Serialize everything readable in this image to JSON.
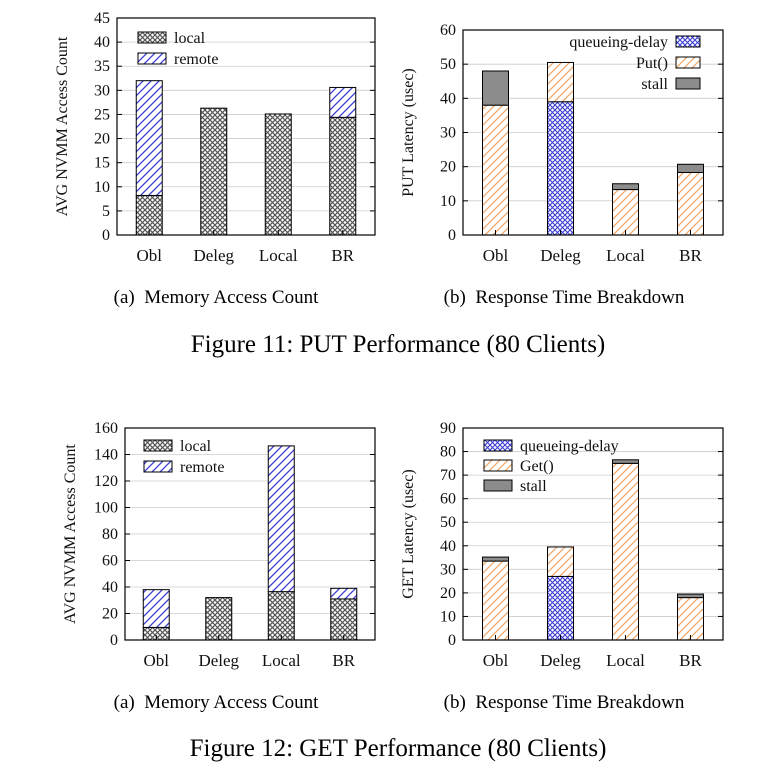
{
  "captions": {
    "fig11": "Figure 11: PUT Performance (80 Clients)",
    "fig12": "Figure 12: GET Performance (80 Clients)"
  },
  "colors": {
    "local": "#555555",
    "remote": "#3b3bd6",
    "queueing": "#3b3bd6",
    "op": "#f0a868",
    "stall": "#8c8c8c",
    "axis": "#000000",
    "grid": "#cccccc"
  },
  "chart_data": [
    {
      "id": "fig11a",
      "type": "bar",
      "stacked": true,
      "subcaption": "(a)  Memory Access Count",
      "ylabel": "AVG NVMM Access Count",
      "ylim": [
        0,
        45
      ],
      "yticks": [
        0,
        5,
        10,
        15,
        20,
        25,
        30,
        35,
        40,
        45
      ],
      "categories": [
        "Obl",
        "Deleg",
        "Local",
        "BR"
      ],
      "series": [
        {
          "name": "local",
          "pattern": "cross",
          "values": [
            8.2,
            26.3,
            25.1,
            24.4
          ]
        },
        {
          "name": "remote",
          "pattern": "diag",
          "values": [
            23.8,
            0,
            0,
            6.2
          ]
        }
      ],
      "legend": {
        "position": "top-left",
        "order": [
          "local",
          "remote"
        ]
      },
      "grid": true
    },
    {
      "id": "fig11b",
      "type": "bar",
      "stacked": true,
      "subcaption": "(b)  Response Time Breakdown",
      "ylabel": "PUT Latency (usec)",
      "ylim": [
        0,
        60
      ],
      "yticks": [
        0,
        10,
        20,
        30,
        40,
        50,
        60
      ],
      "categories": [
        "Obl",
        "Deleg",
        "Local",
        "BR"
      ],
      "series": [
        {
          "name": "queueing-delay",
          "pattern": "cross-blue",
          "values": [
            0,
            39.0,
            0,
            0
          ]
        },
        {
          "name": "Put()",
          "pattern": "diag-orange",
          "values": [
            38.0,
            11.5,
            13.3,
            18.3
          ]
        },
        {
          "name": "stall",
          "pattern": "solid-gray",
          "values": [
            10.0,
            0,
            1.7,
            2.4
          ]
        }
      ],
      "legend": {
        "position": "top-right",
        "order": [
          "queueing-delay",
          "Put()",
          "stall"
        ]
      },
      "grid": true
    },
    {
      "id": "fig12a",
      "type": "bar",
      "stacked": true,
      "subcaption": "(a)  Memory Access Count",
      "ylabel": "AVG NVMM Access Count",
      "ylim": [
        0,
        160
      ],
      "yticks": [
        0,
        20,
        40,
        60,
        80,
        100,
        120,
        140,
        160
      ],
      "categories": [
        "Obl",
        "Deleg",
        "Local",
        "BR"
      ],
      "series": [
        {
          "name": "local",
          "pattern": "cross",
          "values": [
            9.5,
            32.0,
            36.5,
            31.0
          ]
        },
        {
          "name": "remote",
          "pattern": "diag",
          "values": [
            28.5,
            0,
            110.0,
            8.0
          ]
        }
      ],
      "legend": {
        "position": "top-left",
        "order": [
          "local",
          "remote"
        ]
      },
      "grid": true
    },
    {
      "id": "fig12b",
      "type": "bar",
      "stacked": true,
      "subcaption": "(b)  Response Time Breakdown",
      "ylabel": "GET Latency (usec)",
      "ylim": [
        0,
        90
      ],
      "yticks": [
        0,
        10,
        20,
        30,
        40,
        50,
        60,
        70,
        80,
        90
      ],
      "categories": [
        "Obl",
        "Deleg",
        "Local",
        "BR"
      ],
      "series": [
        {
          "name": "queueing-delay",
          "pattern": "cross-blue",
          "values": [
            0,
            27.0,
            0,
            0
          ]
        },
        {
          "name": "Get()",
          "pattern": "diag-orange",
          "values": [
            33.5,
            12.5,
            75.0,
            18.0
          ]
        },
        {
          "name": "stall",
          "pattern": "solid-gray",
          "values": [
            1.7,
            0,
            1.5,
            1.5
          ]
        }
      ],
      "legend": {
        "position": "top-left",
        "order": [
          "queueing-delay",
          "Get()",
          "stall"
        ]
      },
      "grid": true
    }
  ]
}
